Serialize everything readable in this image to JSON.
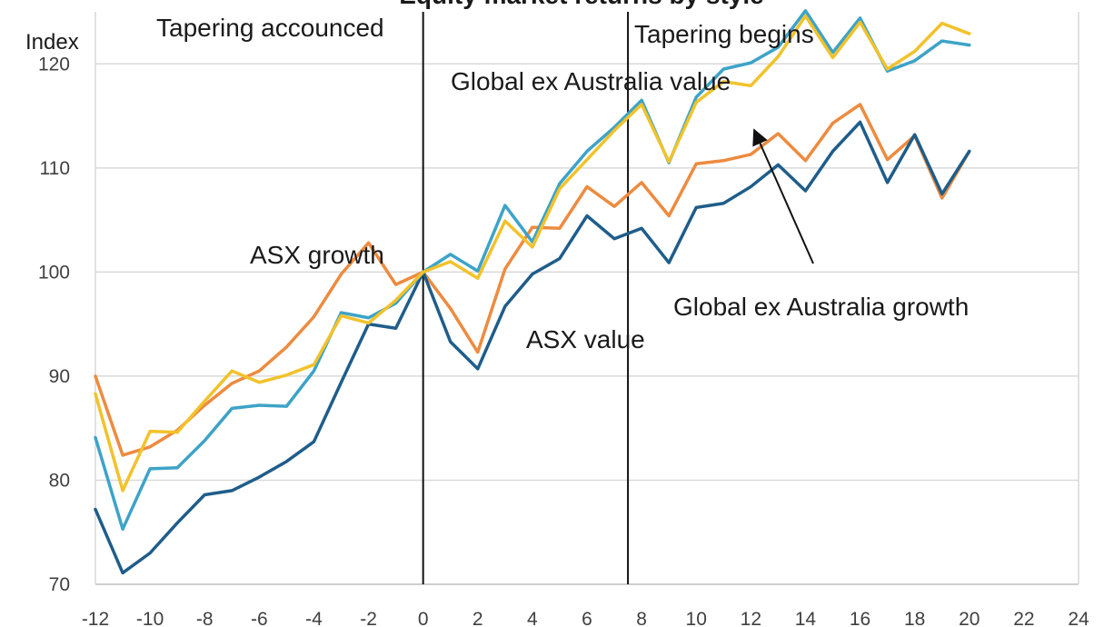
{
  "chart_data": {
    "type": "line",
    "title": "Equity market returns by style",
    "ylabel": "Index",
    "xlabel": "",
    "xlim": [
      -12,
      24
    ],
    "ylim": [
      70,
      125
    ],
    "x_ticks": [
      -12,
      -10,
      -8,
      -6,
      -4,
      -2,
      0,
      2,
      4,
      6,
      8,
      10,
      12,
      14,
      16,
      18,
      20,
      22,
      24
    ],
    "y_ticks": [
      70,
      80,
      90,
      100,
      110,
      120
    ],
    "grid": "horizontal",
    "x": [
      -12,
      -11,
      -10,
      -9,
      -8,
      -7,
      -6,
      -5,
      -4,
      -3,
      -2,
      -1,
      0,
      1,
      2,
      3,
      4,
      5,
      6,
      7,
      8,
      9,
      10,
      11,
      12,
      13,
      14,
      15,
      16,
      17,
      18,
      19,
      20
    ],
    "series": [
      {
        "name": "ASX growth",
        "color": "#ED8B3F",
        "values": [
          90,
          82.4,
          83.2,
          84.8,
          87.2,
          89.3,
          90.5,
          92.8,
          95.7,
          99.8,
          102.8,
          98.8,
          100,
          96.5,
          92.3,
          100.3,
          104.3,
          104.2,
          108.2,
          106.3,
          108.6,
          105.4,
          110.4,
          110.7,
          111.3,
          113.3,
          110.7,
          114.3,
          116.1,
          110.8,
          113.1,
          107.1,
          111.6
        ]
      },
      {
        "name": "ASX value",
        "color": "#1F5D8A",
        "values": [
          77.2,
          71.1,
          73,
          75.9,
          78.6,
          79,
          80.3,
          81.8,
          83.7,
          89.4,
          95,
          94.6,
          100,
          93.3,
          90.7,
          96.7,
          99.8,
          101.3,
          105.4,
          103.2,
          104.2,
          100.9,
          106.2,
          106.6,
          108.2,
          110.3,
          107.8,
          111.6,
          114.4,
          108.6,
          113.2,
          107.5,
          111.6
        ]
      },
      {
        "name": "Global ex  Australia value",
        "color": "#3DA3C8",
        "values": [
          84.1,
          75.3,
          81.1,
          81.2,
          83.8,
          86.9,
          87.2,
          87.1,
          90.5,
          96.1,
          95.6,
          97,
          100,
          101.7,
          100.1,
          106.4,
          102.9,
          108.5,
          111.6,
          113.9,
          116.5,
          110.5,
          116.8,
          119.5,
          120.1,
          121.6,
          125.1,
          121.1,
          124.4,
          119.3,
          120.3,
          122.2,
          121.8
        ]
      },
      {
        "name": "Global ex  Australia growth",
        "color": "#F2C22A",
        "values": [
          88.3,
          79,
          84.7,
          84.6,
          87.6,
          90.5,
          89.4,
          90.1,
          91.1,
          95.8,
          95.1,
          97.3,
          100,
          101,
          99.4,
          104.9,
          102.4,
          108,
          110.8,
          113.6,
          116.1,
          110.6,
          116.3,
          118.3,
          117.9,
          120.7,
          124.6,
          120.6,
          124,
          119.5,
          121.2,
          123.9,
          122.9
        ]
      }
    ],
    "vlines": [
      0,
      7.5
    ],
    "annotations": [
      {
        "id": "tapering-announced",
        "text": "Tapering accounced"
      },
      {
        "id": "tapering-begins",
        "text": "Tapering begins"
      },
      {
        "id": "asx-growth",
        "text": "ASX growth"
      },
      {
        "id": "asx-value",
        "text": "ASX value"
      },
      {
        "id": "global-value",
        "text": "Global ex  Australia value"
      },
      {
        "id": "global-growth",
        "text": "Global ex  Australia growth"
      }
    ]
  }
}
